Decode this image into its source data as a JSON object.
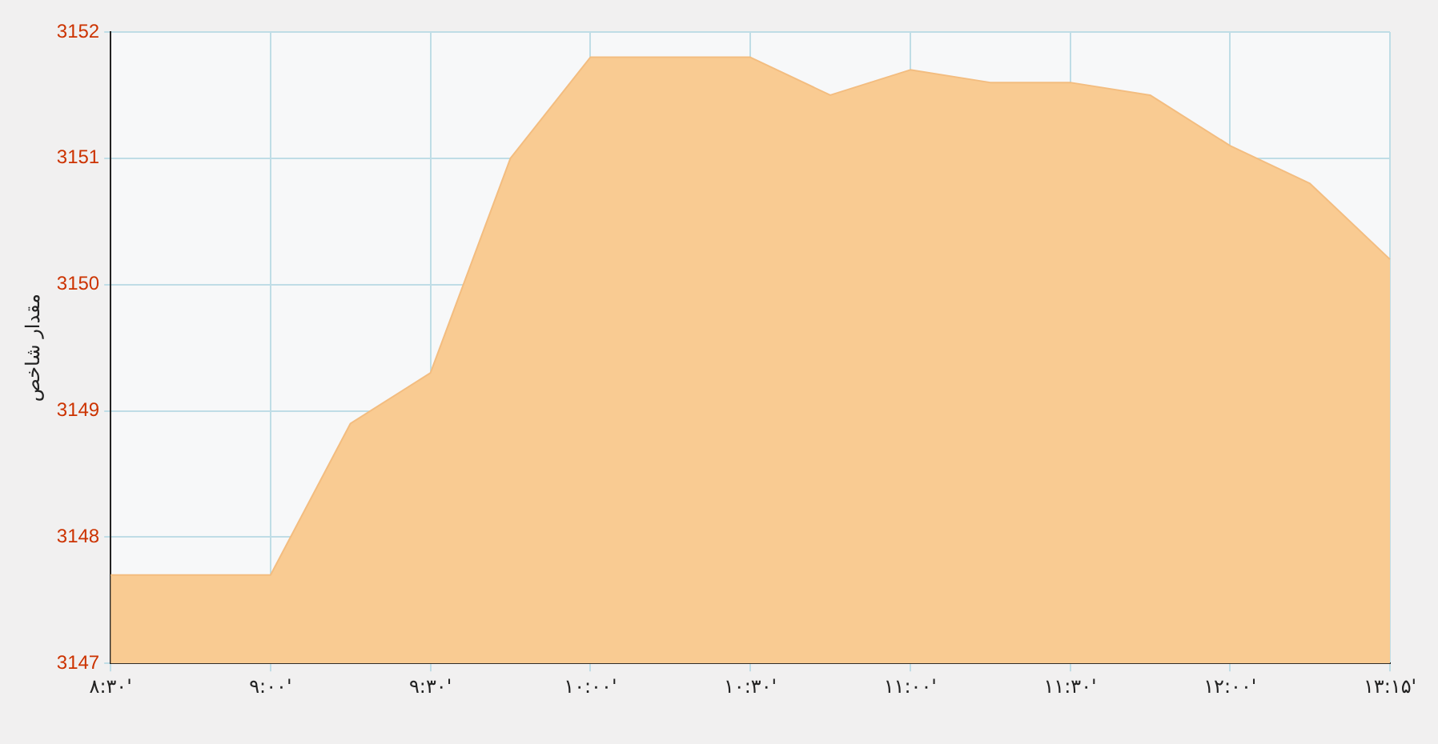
{
  "chart_data": {
    "type": "area",
    "ylabel": "مقدار شاخص",
    "categories": [
      "۸:۳۰'",
      null,
      "۹:۰۰'",
      null,
      "۹:۳۰'",
      null,
      "۱۰:۰۰'",
      null,
      "۱۰:۳۰'",
      null,
      "۱۱:۰۰'",
      null,
      "۱۱:۳۰'",
      null,
      "۱۲:۰۰'",
      null,
      "۱۳:۱۵'"
    ],
    "series": [
      {
        "color": "#f9cb92",
        "values": [
          3147.7,
          3147.7,
          3147.7,
          3148.9,
          3149.3,
          3151.0,
          3151.8,
          3151.8,
          3151.8,
          3151.5,
          3151.7,
          3151.6,
          3151.6,
          3151.5,
          3151.1,
          3150.8,
          3150.2
        ]
      }
    ],
    "ylim": [
      3147,
      3152
    ],
    "yticks": [
      3147,
      3148,
      3149,
      3150,
      3151,
      3152
    ],
    "grid": true,
    "legend": false
  }
}
